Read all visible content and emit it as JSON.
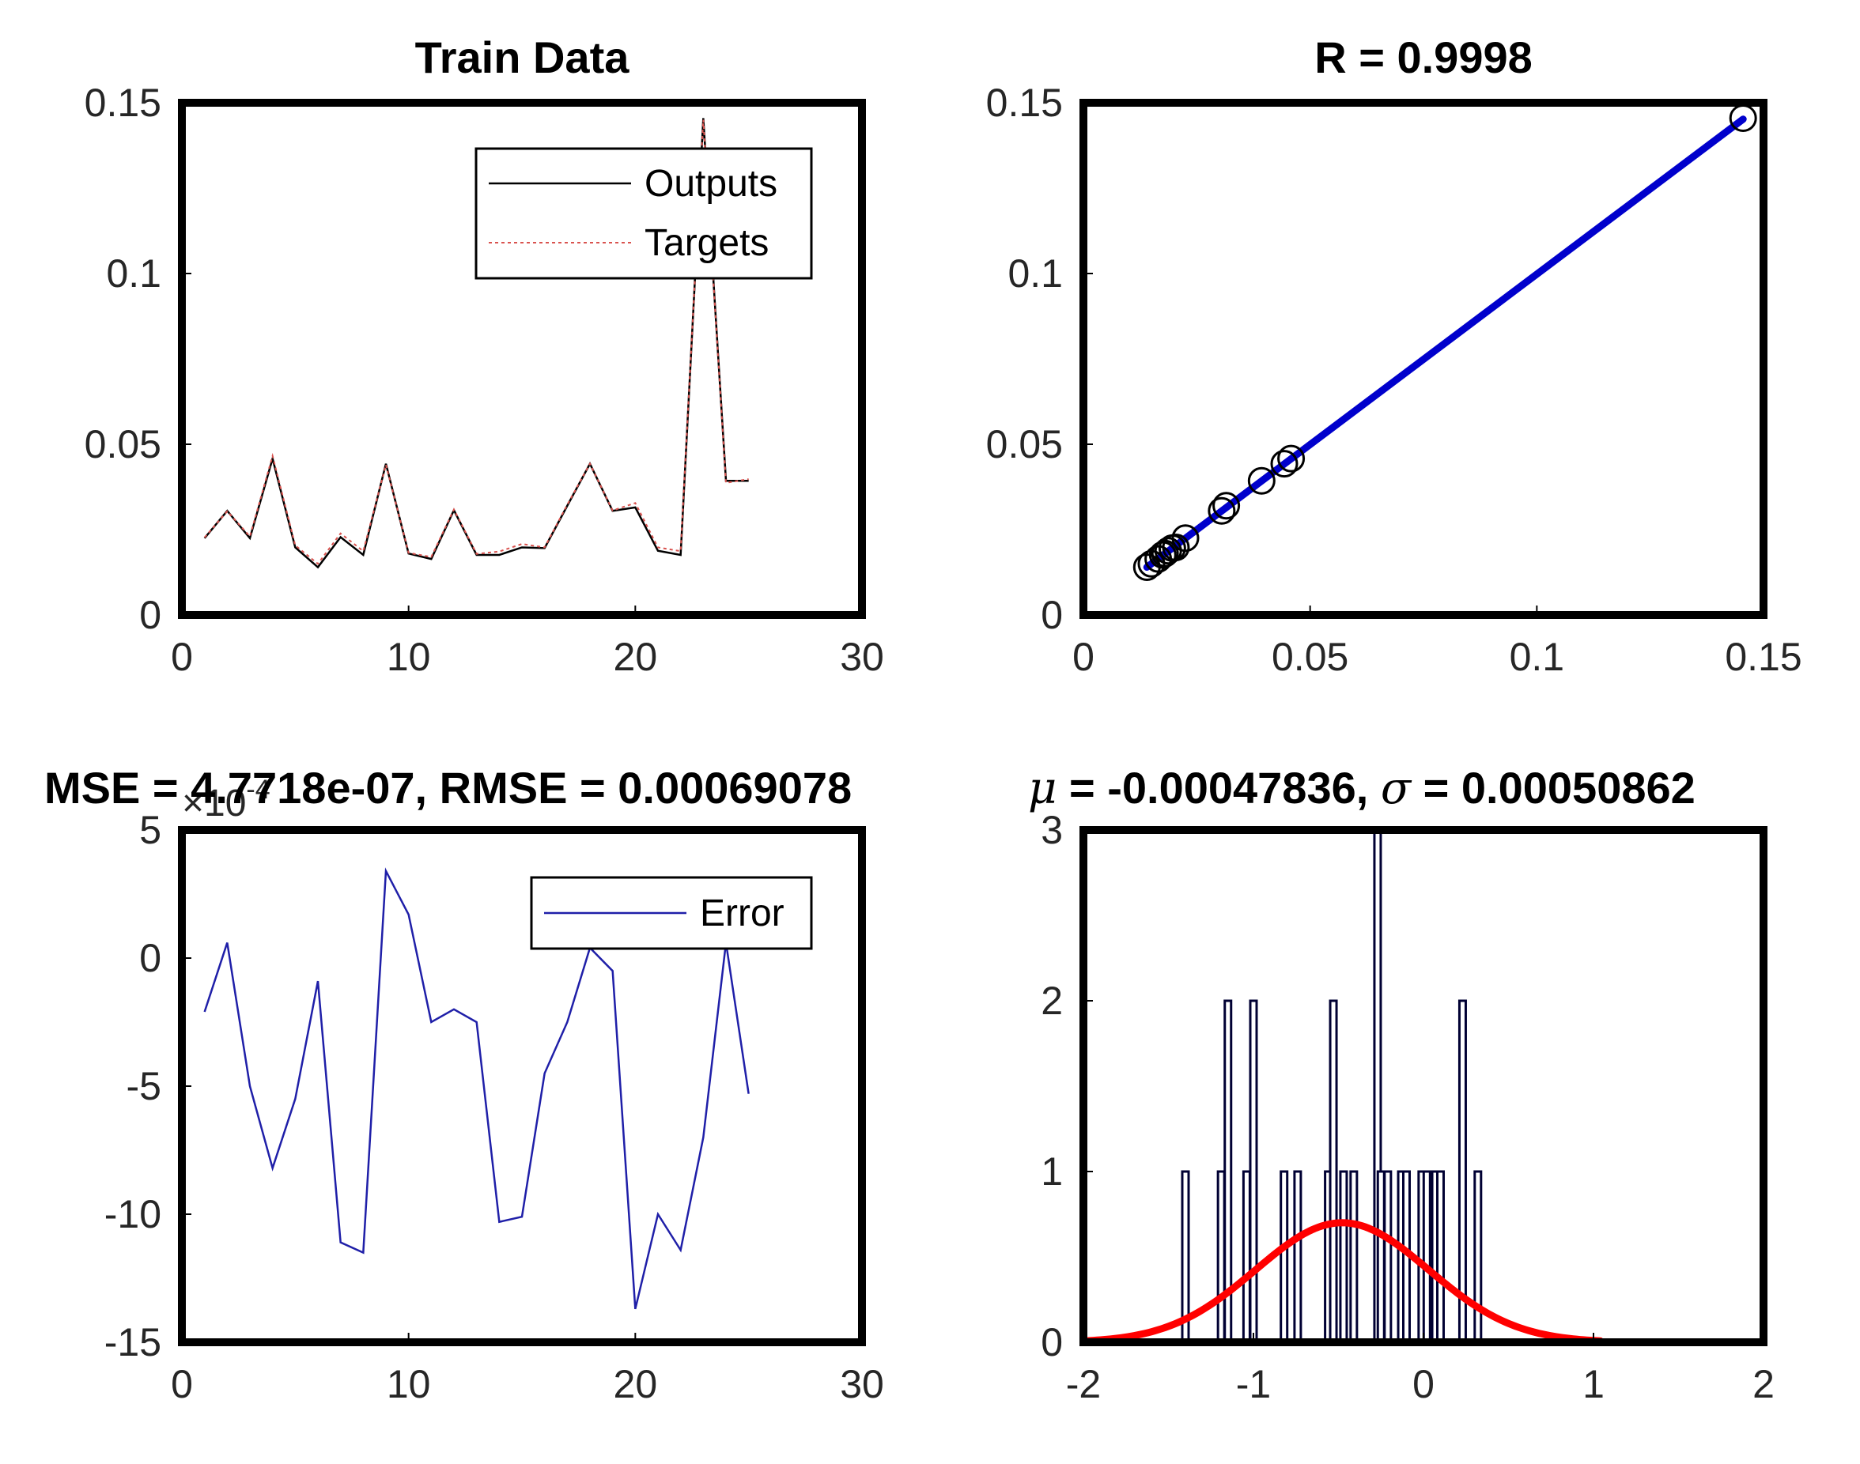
{
  "figure_colors": {
    "axes": "#000000",
    "outputs_line": "#000000",
    "targets_line": "#d9534f",
    "fit_line": "#0000cc",
    "error_line": "#1f1fa8",
    "hist_bars": "#000033",
    "normal_curve": "#ff0000"
  },
  "chart_data": [
    {
      "id": "train",
      "type": "line",
      "title": "Train Data",
      "xlim": [
        0,
        30
      ],
      "ylim": [
        0,
        0.15
      ],
      "xticks": [
        "0",
        "10",
        "20",
        "30"
      ],
      "xtick_values": [
        0,
        10,
        20,
        30
      ],
      "yticks": [
        "0",
        "0.05",
        "0.1",
        "0.15"
      ],
      "ytick_values": [
        0,
        0.05,
        0.1,
        0.15
      ],
      "legend": {
        "position": "top-right",
        "entries": [
          "Outputs",
          "Targets"
        ]
      },
      "x": [
        1,
        2,
        3,
        4,
        5,
        6,
        7,
        8,
        9,
        10,
        11,
        12,
        13,
        14,
        15,
        16,
        17,
        18,
        19,
        20,
        21,
        22,
        23,
        24,
        25
      ],
      "series": [
        {
          "name": "Outputs",
          "style": "solid",
          "color": "#000000",
          "values": [
            0.0225,
            0.0305,
            0.0225,
            0.0458,
            0.0198,
            0.014,
            0.0228,
            0.0176,
            0.0443,
            0.018,
            0.0164,
            0.0307,
            0.0176,
            0.0176,
            0.0198,
            0.0196,
            0.032,
            0.0443,
            0.0305,
            0.0315,
            0.0188,
            0.0176,
            0.1455,
            0.0393,
            0.0393
          ]
        },
        {
          "name": "Targets",
          "style": "dotted",
          "color": "#d9534f",
          "values": [
            0.0227,
            0.0304,
            0.023,
            0.0466,
            0.0204,
            0.015,
            0.0239,
            0.0187,
            0.044,
            0.0182,
            0.017,
            0.0309,
            0.0179,
            0.0186,
            0.0208,
            0.0198,
            0.0323,
            0.0443,
            0.0306,
            0.0328,
            0.0198,
            0.0187,
            0.145,
            0.0387,
            0.0398
          ]
        }
      ]
    },
    {
      "id": "regression",
      "type": "scatter",
      "title": "R = 0.9998",
      "xlim": [
        0,
        0.15
      ],
      "ylim": [
        0,
        0.15
      ],
      "xticks": [
        "0",
        "0.05",
        "0.1",
        "0.15"
      ],
      "xtick_values": [
        0,
        0.05,
        0.1,
        0.15
      ],
      "yticks": [
        "0",
        "0.05",
        "0.1",
        "0.15"
      ],
      "yticks_values": [
        0,
        0.05,
        0.1,
        0.15
      ],
      "points_x": [
        0.014,
        0.015,
        0.0165,
        0.0175,
        0.018,
        0.0187,
        0.0196,
        0.0204,
        0.0225,
        0.0305,
        0.0315,
        0.0393,
        0.0443,
        0.0458,
        0.1455
      ],
      "points_y": [
        0.014,
        0.015,
        0.0164,
        0.0176,
        0.018,
        0.0188,
        0.0196,
        0.0198,
        0.0225,
        0.0305,
        0.032,
        0.0393,
        0.0443,
        0.0458,
        0.1455
      ],
      "fit_line": {
        "x": [
          0.014,
          0.1455
        ],
        "y": [
          0.014,
          0.1452
        ]
      }
    },
    {
      "id": "error",
      "type": "line",
      "title": "MSE = 4.7718e-07, RMSE = 0.00069078",
      "y_exponent_label": "×10",
      "y_exponent": "-4",
      "xlim": [
        0,
        30
      ],
      "ylim": [
        -15,
        5
      ],
      "xticks": [
        "0",
        "10",
        "20",
        "30"
      ],
      "xtick_values": [
        0,
        10,
        20,
        30
      ],
      "yticks": [
        "-15",
        "-10",
        "-5",
        "0",
        "5"
      ],
      "ytick_values": [
        -15,
        -10,
        -5,
        0,
        5
      ],
      "legend": {
        "position": "top-right",
        "entries": [
          "Error"
        ]
      },
      "x": [
        1,
        2,
        3,
        4,
        5,
        6,
        7,
        8,
        9,
        10,
        11,
        12,
        13,
        14,
        15,
        16,
        17,
        18,
        19,
        20,
        21,
        22,
        23,
        24,
        25
      ],
      "series": [
        {
          "name": "Error",
          "values": [
            -2.1,
            0.6,
            -5.0,
            -8.2,
            -5.5,
            -0.9,
            -11.1,
            -11.5,
            3.4,
            1.7,
            -2.5,
            -2.0,
            -2.5,
            -10.3,
            -10.1,
            -4.5,
            -2.5,
            0.4,
            -0.5,
            -13.7,
            -10.0,
            -11.4,
            -7.0,
            0.6,
            -5.3
          ]
        }
      ]
    },
    {
      "id": "histogram",
      "type": "bar",
      "title_mu_symbol": "μ",
      "title_mu_value": " = -0.00047836, ",
      "title_sigma_symbol": "σ",
      "title_sigma_value": " = 0.00050862",
      "xlim": [
        -2,
        2
      ],
      "ylim": [
        0,
        3
      ],
      "xticks": [
        "-2",
        "-1",
        "0",
        "1",
        "2"
      ],
      "xtick_values": [
        -2,
        -1,
        0,
        1,
        2
      ],
      "yticks": [
        "0",
        "1",
        "2",
        "3"
      ],
      "ytick_values": [
        0,
        1,
        2,
        3
      ],
      "bar_x": [
        -1.4,
        -1.19,
        -1.15,
        -1.04,
        -1.0,
        -0.82,
        -0.74,
        -0.56,
        -0.53,
        -0.47,
        -0.41,
        -0.27,
        -0.25,
        -0.21,
        -0.13,
        -0.1,
        -0.01,
        0.02,
        0.07,
        0.1,
        0.23,
        0.32
      ],
      "bar_counts": [
        1,
        1,
        2,
        1,
        2,
        1,
        1,
        1,
        2,
        1,
        1,
        3,
        1,
        1,
        1,
        1,
        1,
        1,
        1,
        1,
        2,
        1
      ],
      "normal_curve": {
        "mean": -0.47836,
        "std": 0.50862,
        "scale": 0.7,
        "x_range": [
          -2.0,
          1.05
        ]
      }
    }
  ]
}
